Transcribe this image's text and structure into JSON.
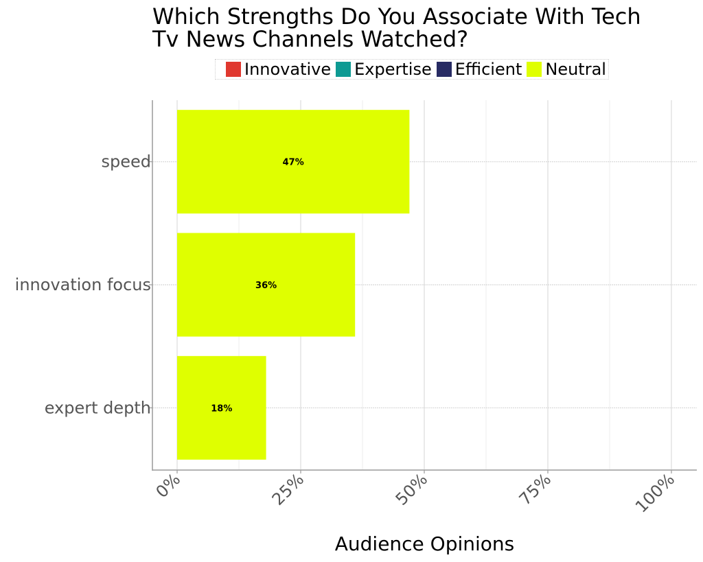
{
  "chart_data": {
    "type": "bar",
    "orientation": "horizontal",
    "title": "Which Strengths Do You Associate With Tech Tv News Channels Watched?",
    "xlabel": "Audience Opinions",
    "ylabel": "",
    "categories": [
      "speed",
      "innovation focus",
      "expert depth"
    ],
    "series": [
      {
        "name": "Neutral",
        "values": [
          47,
          36,
          18
        ],
        "color": "#DFFF00"
      }
    ],
    "data_labels": [
      "47%",
      "36%",
      "18%"
    ],
    "xlim": [
      0,
      100
    ],
    "x_ticks": [
      0,
      25,
      50,
      75,
      100
    ],
    "x_tick_labels": [
      "0%",
      "25%",
      "50%",
      "75%",
      "100%"
    ],
    "legend": {
      "position": "top",
      "entries": [
        {
          "label": "Innovative",
          "color": "#E0382F"
        },
        {
          "label": "Expertise",
          "color": "#0E9A93"
        },
        {
          "label": "Efficient",
          "color": "#272B63"
        },
        {
          "label": "Neutral",
          "color": "#DFFF00"
        }
      ]
    },
    "grid": true
  }
}
